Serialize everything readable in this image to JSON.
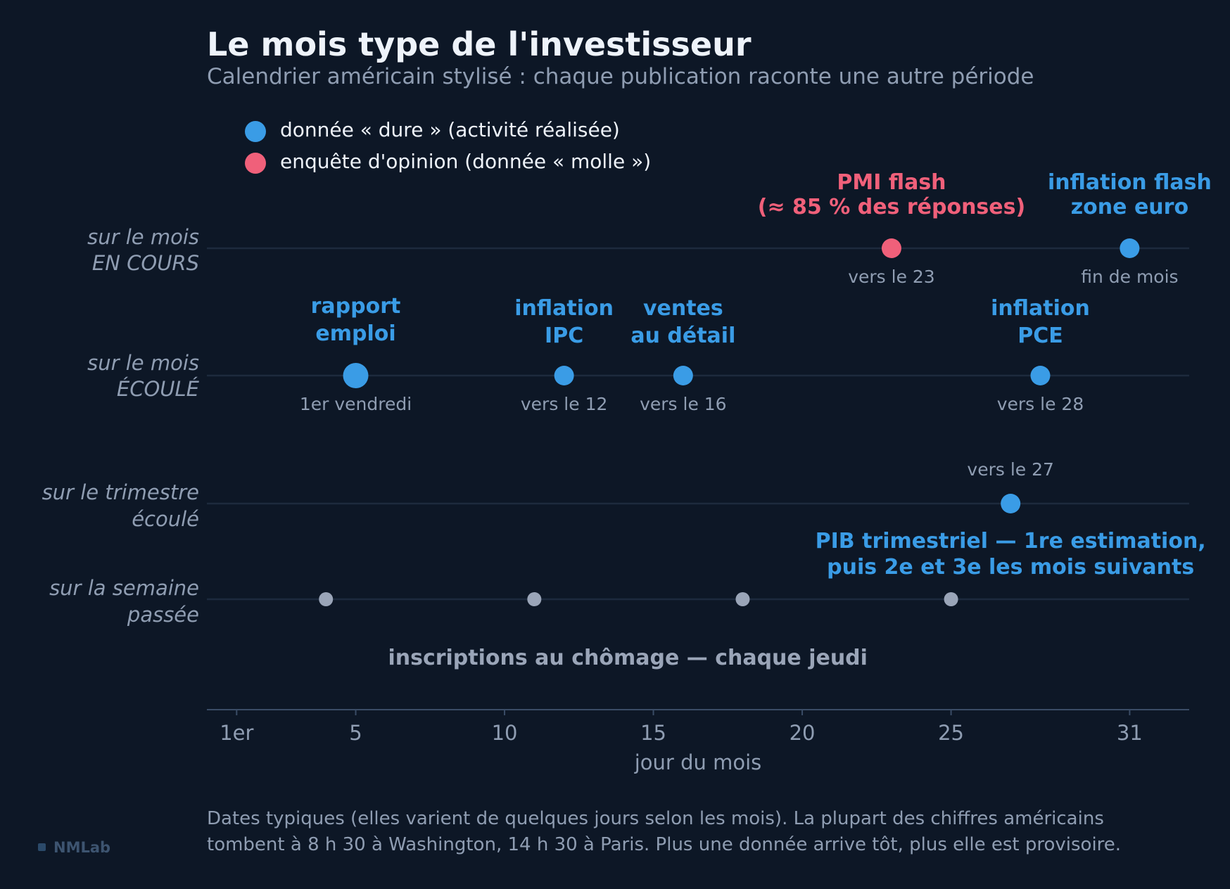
{
  "title": "Le mois type de l'investisseur",
  "subtitle": "Calendrier américain stylisé : chaque publication raconte une autre période",
  "legend": [
    {
      "label": "donnée « dure » (activité réalisée)",
      "color": "#3a9ce6"
    },
    {
      "label": "enquête d'opinion (donnée « molle »)",
      "color": "#f0607a"
    }
  ],
  "chart_data": {
    "type": "scatter",
    "xlabel": "jour du mois",
    "xlim": [
      0,
      33
    ],
    "xticks": [
      {
        "value": 1,
        "label": "1er"
      },
      {
        "value": 5,
        "label": "5"
      },
      {
        "value": 10,
        "label": "10"
      },
      {
        "value": 15,
        "label": "15"
      },
      {
        "value": 20,
        "label": "20"
      },
      {
        "value": 25,
        "label": "25"
      },
      {
        "value": 31,
        "label": "31"
      }
    ],
    "rows": [
      {
        "label": [
          "sur le mois",
          "EN COURS"
        ]
      },
      {
        "label": [
          "sur le mois",
          "ÉCOULÉ"
        ]
      },
      {
        "label": [
          "sur le trimestre",
          "écoulé"
        ]
      },
      {
        "label": [
          "sur la semaine",
          "passée"
        ]
      }
    ],
    "events": [
      {
        "row": 0,
        "day": 23,
        "kind": "soft",
        "name": [
          "PMI flash",
          "(≈ 85 % des réponses)"
        ],
        "date": "vers le 23"
      },
      {
        "row": 0,
        "day": 31,
        "kind": "hard",
        "name": [
          "inflation flash",
          "zone euro"
        ],
        "date": "fin de mois"
      },
      {
        "row": 1,
        "day": 5,
        "kind": "hard",
        "big": true,
        "name": [
          "rapport",
          "emploi"
        ],
        "date": "1er vendredi"
      },
      {
        "row": 1,
        "day": 12,
        "kind": "hard",
        "name": [
          "inflation",
          "IPC"
        ],
        "date": "vers le 12"
      },
      {
        "row": 1,
        "day": 16,
        "kind": "hard",
        "name": [
          "ventes",
          "au détail"
        ],
        "date": "vers le 16"
      },
      {
        "row": 1,
        "day": 28,
        "kind": "hard",
        "name": [
          "inflation",
          "PCE"
        ],
        "date": "vers le 28"
      },
      {
        "row": 2,
        "day": 27,
        "kind": "hard",
        "name": [
          "PIB trimestriel — 1re estimation,",
          "puis 2e et 3e les mois suivants"
        ],
        "date": "vers le 27"
      }
    ],
    "weekly": {
      "row": 3,
      "days": [
        4,
        11,
        18,
        25
      ],
      "label": "inscriptions au chômage — chaque jeudi",
      "color": "#9aa5b8"
    }
  },
  "footnote": [
    "Dates typiques (elles varient de quelques jours selon les mois). La plupart des chiffres américains",
    "tombent à 8 h 30 à Washington, 14 h 30 à Paris. Plus une donnée arrive tôt, plus elle est provisoire."
  ],
  "brand": "NMLab",
  "colors": {
    "hard": "#3a9ce6",
    "soft": "#f0607a",
    "brand_square": "#2b4a6a"
  }
}
